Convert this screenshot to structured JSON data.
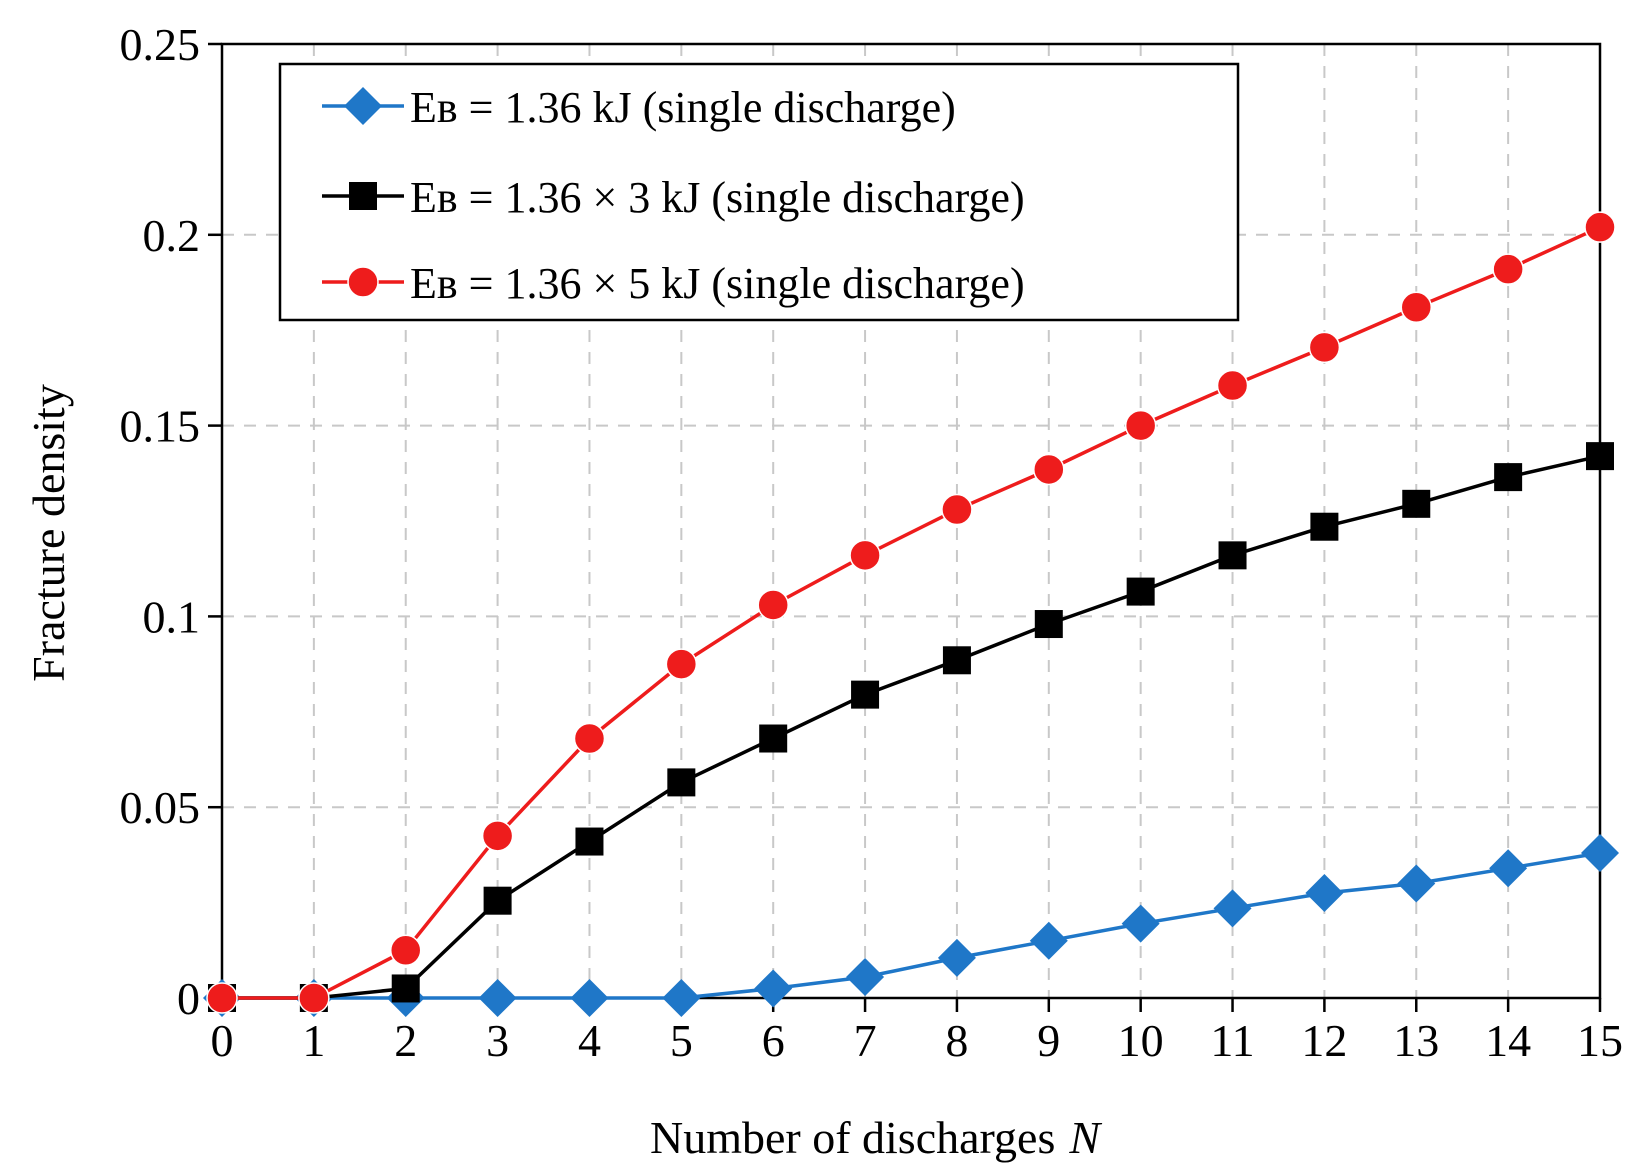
{
  "chart_data": {
    "type": "line",
    "title": "",
    "xlabel": "Number of discharges",
    "xlabel_var": "N",
    "ylabel": "Fracture density",
    "xlim": [
      0,
      15
    ],
    "ylim": [
      0,
      0.25
    ],
    "x_ticks": [
      "0",
      "1",
      "2",
      "3",
      "4",
      "5",
      "6",
      "7",
      "8",
      "9",
      "10",
      "11",
      "12",
      "13",
      "14",
      "15"
    ],
    "y_ticks": [
      {
        "value": 0,
        "label": "0"
      },
      {
        "value": 0.05,
        "label": "0.05"
      },
      {
        "value": 0.1,
        "label": "0.1"
      },
      {
        "value": 0.15,
        "label": "0.15"
      },
      {
        "value": 0.2,
        "label": "0.2"
      },
      {
        "value": 0.25,
        "label": "0.25"
      }
    ],
    "grid": true,
    "legend_position": "top-left",
    "x": [
      0,
      1,
      2,
      3,
      4,
      5,
      6,
      7,
      8,
      9,
      10,
      11,
      12,
      13,
      14,
      15
    ],
    "series": [
      {
        "name": "Eʙ = 1.36 kJ (single discharge)",
        "color": "#1f77c8",
        "marker": "diamond",
        "values": [
          0,
          0,
          0,
          0,
          0,
          0,
          0.0025,
          0.0055,
          0.0105,
          0.015,
          0.0195,
          0.0235,
          0.0275,
          0.03,
          0.034,
          0.038
        ]
      },
      {
        "name": "Eʙ = 1.36 × 3 kJ (single discharge)",
        "color": "#000000",
        "marker": "square",
        "values": [
          0,
          0,
          0.0025,
          0.0255,
          0.041,
          0.0565,
          0.068,
          0.0795,
          0.0885,
          0.098,
          0.1065,
          0.116,
          0.1235,
          0.1295,
          0.1365,
          0.142
        ]
      },
      {
        "name": "Eʙ = 1.36 × 5 kJ (single discharge)",
        "color": "#ee1c1c",
        "marker": "circle",
        "values": [
          0,
          0,
          0.0125,
          0.0425,
          0.068,
          0.0875,
          0.103,
          0.116,
          0.128,
          0.1385,
          0.15,
          0.1605,
          0.1705,
          0.181,
          0.191,
          0.202
        ]
      }
    ]
  }
}
